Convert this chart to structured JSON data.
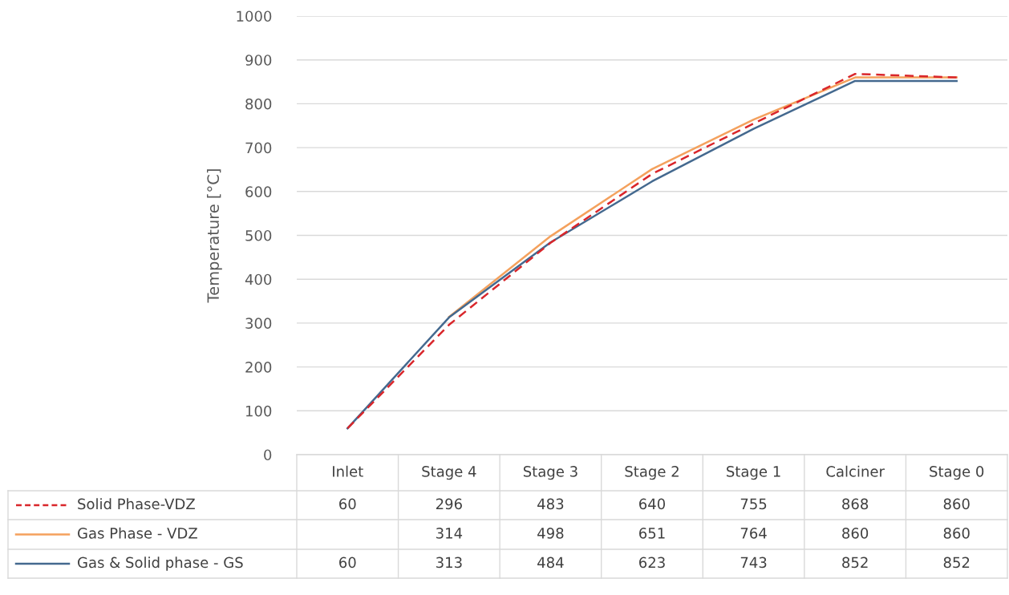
{
  "chart_data": {
    "type": "line",
    "ylabel": "Temperature [°C]",
    "categories": [
      "Inlet",
      "Stage 4",
      "Stage 3",
      "Stage 2",
      "Stage 1",
      "Calciner",
      "Stage 0"
    ],
    "series": [
      {
        "name": "Solid Phase-VDZ",
        "color": "#d9262b",
        "line_style": "dashed",
        "values": [
          60,
          296,
          483,
          640,
          755,
          868,
          860
        ]
      },
      {
        "name": "Gas Phase - VDZ",
        "color": "#f4a15d",
        "line_style": "solid",
        "values": [
          null,
          314,
          498,
          651,
          764,
          860,
          860
        ]
      },
      {
        "name": "Gas & Solid phase - GS",
        "color": "#44698f",
        "line_style": "solid",
        "values": [
          60,
          313,
          484,
          623,
          743,
          852,
          852
        ]
      }
    ],
    "ylim": [
      0,
      1000
    ],
    "yticks": [
      0,
      100,
      200,
      300,
      400,
      500,
      600,
      700,
      800,
      900,
      1000
    ],
    "grid": "y",
    "legend": "bottom",
    "data_labels": true,
    "marker": "none"
  }
}
